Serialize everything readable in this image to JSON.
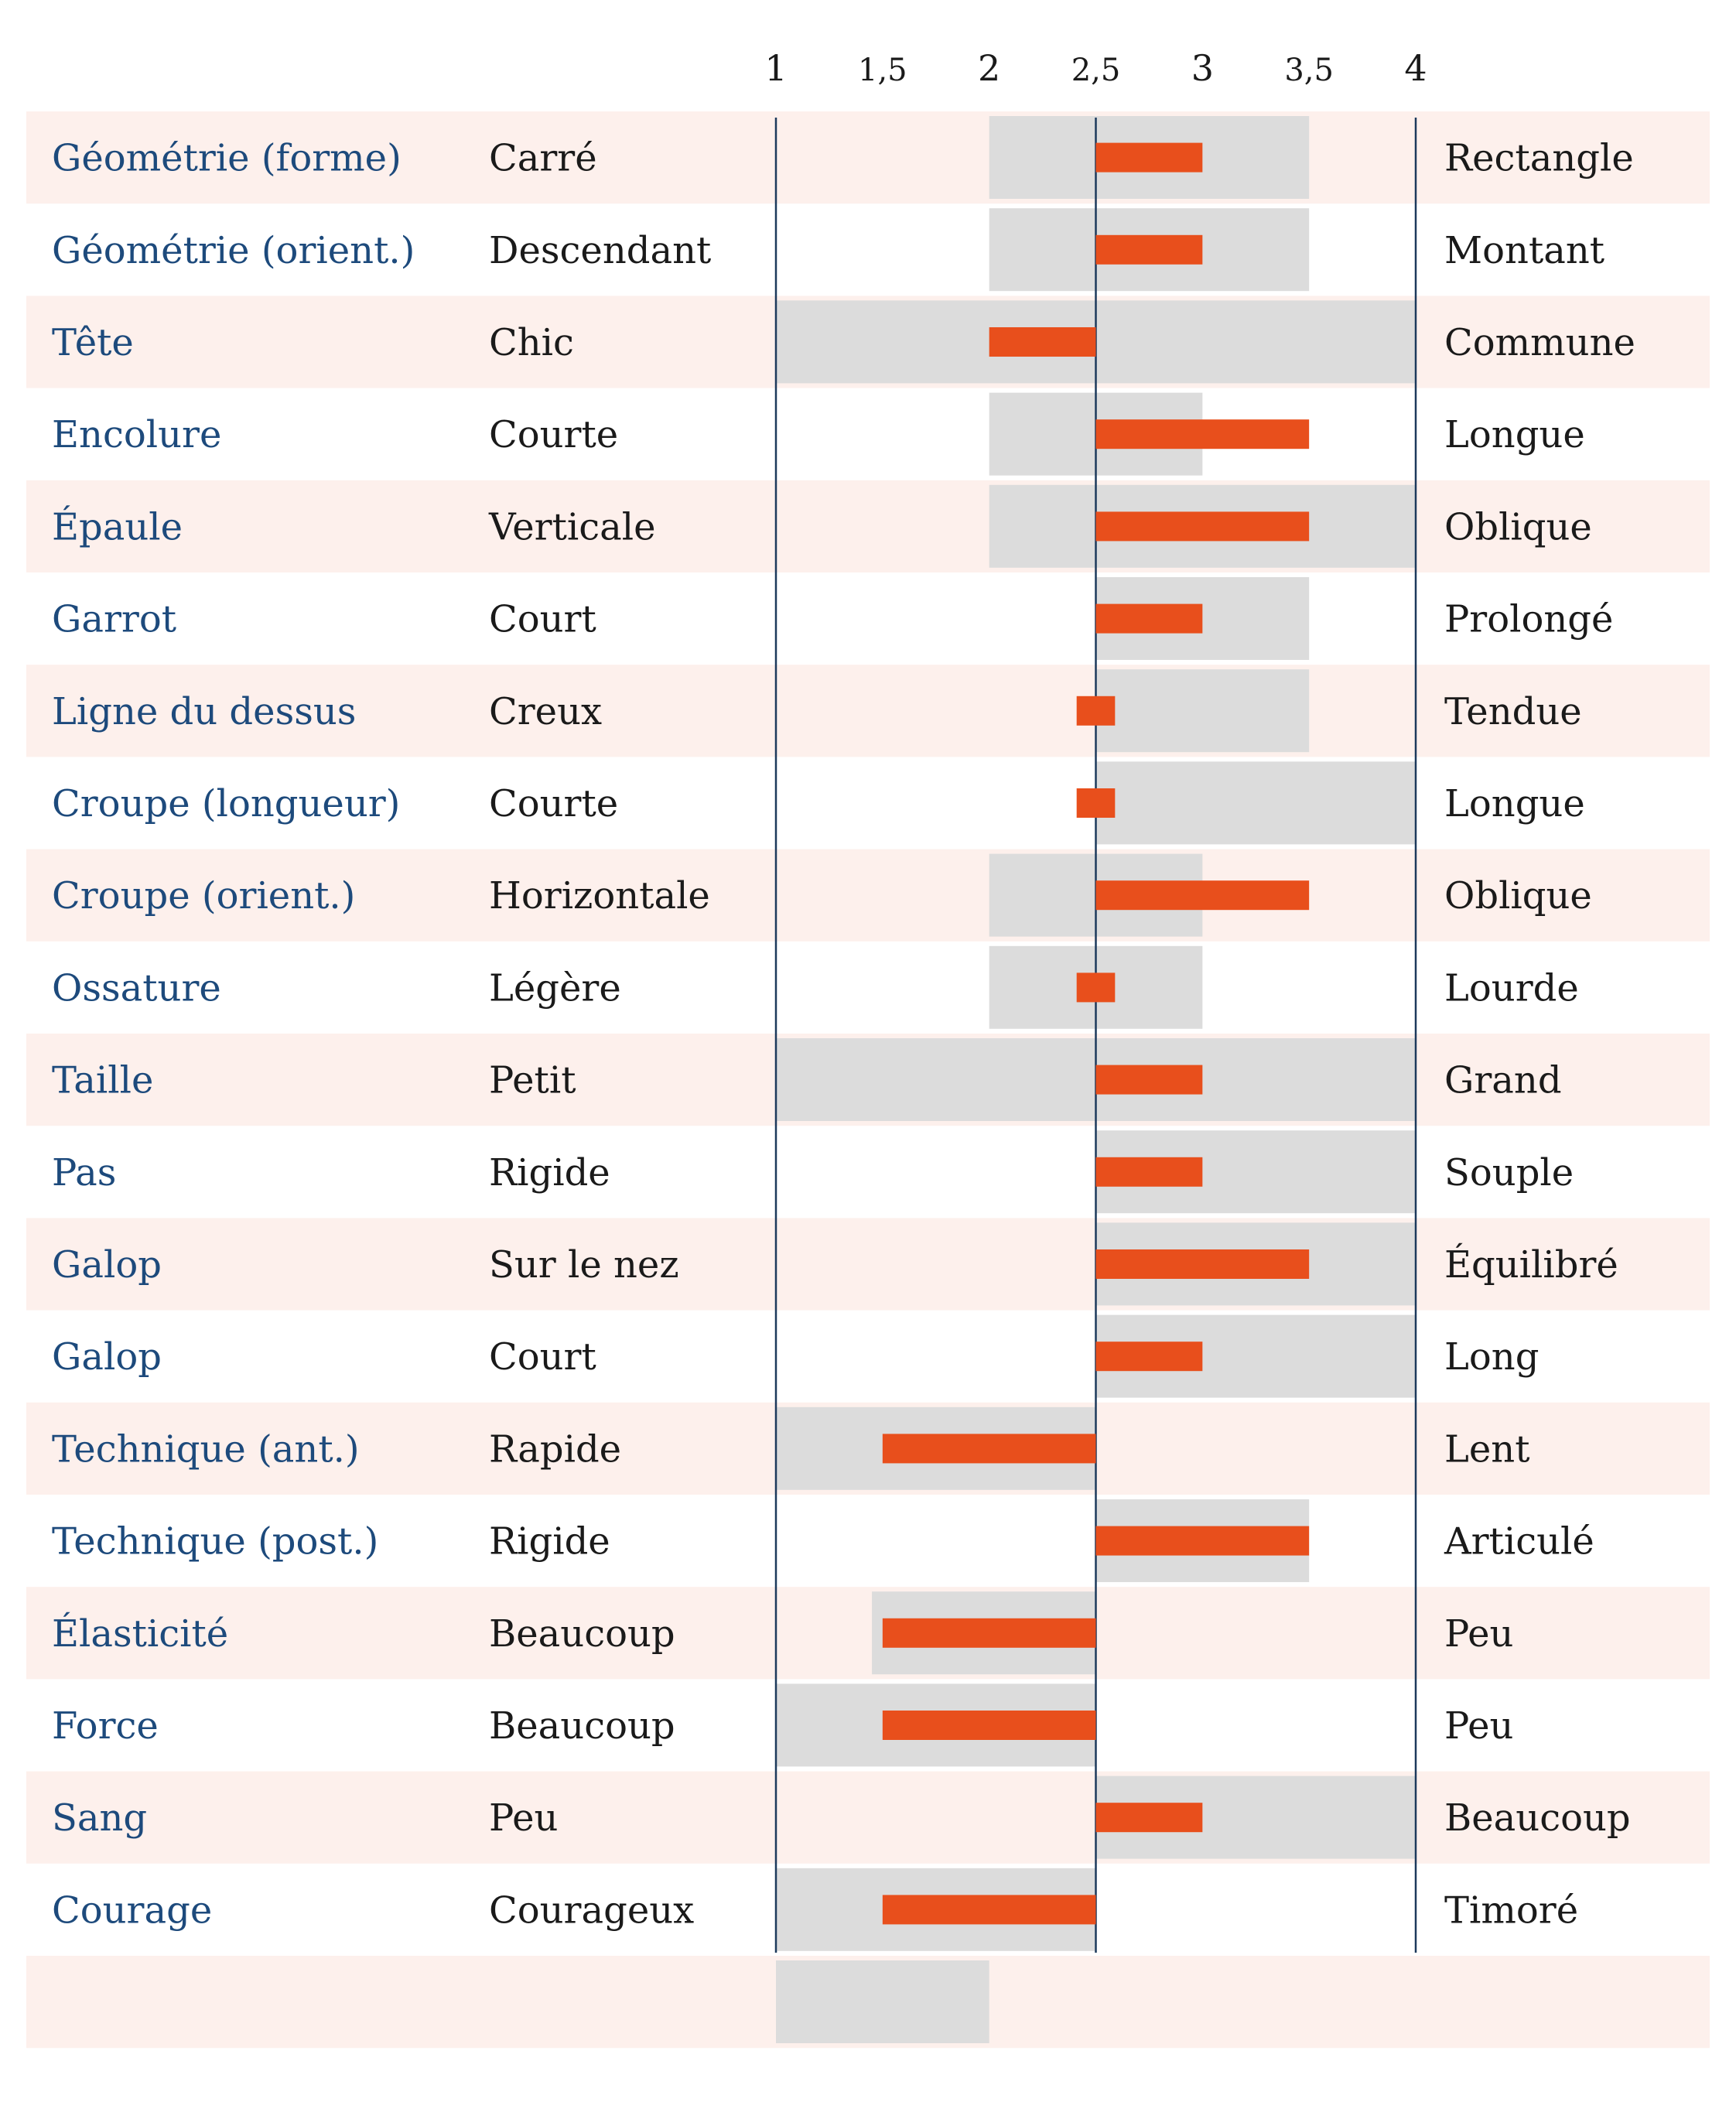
{
  "chart_data": {
    "type": "bar",
    "title": "",
    "xlabel": "",
    "ylabel": "",
    "xlim": [
      1,
      4
    ],
    "ticks": [
      {
        "value": 1,
        "label": "1"
      },
      {
        "value": 1.5,
        "label": "1,5"
      },
      {
        "value": 2,
        "label": "2"
      },
      {
        "value": 2.5,
        "label": "2,5"
      },
      {
        "value": 3,
        "label": "3"
      },
      {
        "value": 3.5,
        "label": "3,5"
      },
      {
        "value": 4,
        "label": "4"
      }
    ],
    "center": 2.5,
    "colors": {
      "bar": "#e84f1c",
      "range": "#dcdcdc",
      "row_alt": "#fdf0ec",
      "axis": "#1d3a5c",
      "trait_text": "#1d4a7c"
    },
    "rows": [
      {
        "trait": "Géométrie (forme)",
        "left": "Carré",
        "right": "Rectangle",
        "value": 3,
        "range": [
          2,
          3.5
        ]
      },
      {
        "trait": "Géométrie (orient.)",
        "left": "Descendant",
        "right": "Montant",
        "value": 3,
        "range": [
          2,
          3.5
        ]
      },
      {
        "trait": "Tête",
        "left": "Chic",
        "right": "Commune",
        "value": 2,
        "range": [
          1,
          4
        ]
      },
      {
        "trait": "Encolure",
        "left": "Courte",
        "right": "Longue",
        "value": 3.5,
        "range": [
          2,
          3
        ]
      },
      {
        "trait": "Épaule",
        "left": "Verticale",
        "right": "Oblique",
        "value": 3.5,
        "range": [
          2,
          4
        ]
      },
      {
        "trait": "Garrot",
        "left": "Court",
        "right": "Prolongé",
        "value": 3,
        "range": [
          2.5,
          3.5
        ]
      },
      {
        "trait": "Ligne du dessus",
        "left": "Creux",
        "right": "Tendue",
        "value": 2.5,
        "range": [
          2.5,
          3.5
        ]
      },
      {
        "trait": "Croupe (longueur)",
        "left": "Courte",
        "right": "Longue",
        "value": 2.5,
        "range": [
          2.5,
          4
        ]
      },
      {
        "trait": "Croupe (orient.)",
        "left": "Horizontale",
        "right": "Oblique",
        "value": 3.5,
        "range": [
          2,
          3
        ]
      },
      {
        "trait": "Ossature",
        "left": "Légère",
        "right": "Lourde",
        "value": 2.5,
        "range": [
          2,
          3
        ]
      },
      {
        "trait": "Taille",
        "left": "Petit",
        "right": "Grand",
        "value": 3,
        "range": [
          1,
          4
        ]
      },
      {
        "trait": "Pas",
        "left": "Rigide",
        "right": "Souple",
        "value": 3,
        "range": [
          2.5,
          4
        ]
      },
      {
        "trait": "Galop",
        "left": "Sur le nez",
        "right": "Équilibré",
        "value": 3.5,
        "range": [
          2.5,
          4
        ]
      },
      {
        "trait": "Galop",
        "left": "Court",
        "right": "Long",
        "value": 3,
        "range": [
          2.5,
          4
        ]
      },
      {
        "trait": "Technique (ant.)",
        "left": "Rapide",
        "right": "Lent",
        "value": 1.5,
        "range": [
          1,
          2.5
        ]
      },
      {
        "trait": "Technique (post.)",
        "left": "Rigide",
        "right": "Articulé",
        "value": 3.5,
        "range": [
          2.5,
          3.5
        ]
      },
      {
        "trait": "Élasticité",
        "left": "Beaucoup",
        "right": "Peu",
        "value": 1.5,
        "range": [
          1.45,
          2.5
        ]
      },
      {
        "trait": "Force",
        "left": "Beaucoup",
        "right": "Peu",
        "value": 1.5,
        "range": [
          1,
          2.5
        ]
      },
      {
        "trait": "Sang",
        "left": "Peu",
        "right": "Beaucoup",
        "value": 3,
        "range": [
          2.5,
          4
        ]
      },
      {
        "trait": "Courage",
        "left": "Courageux",
        "right": "Timoré",
        "value": 1.5,
        "range": [
          1,
          2.5
        ]
      },
      {
        "trait": "",
        "left": "",
        "right": "",
        "value": null,
        "range": [
          1,
          2
        ]
      }
    ]
  }
}
